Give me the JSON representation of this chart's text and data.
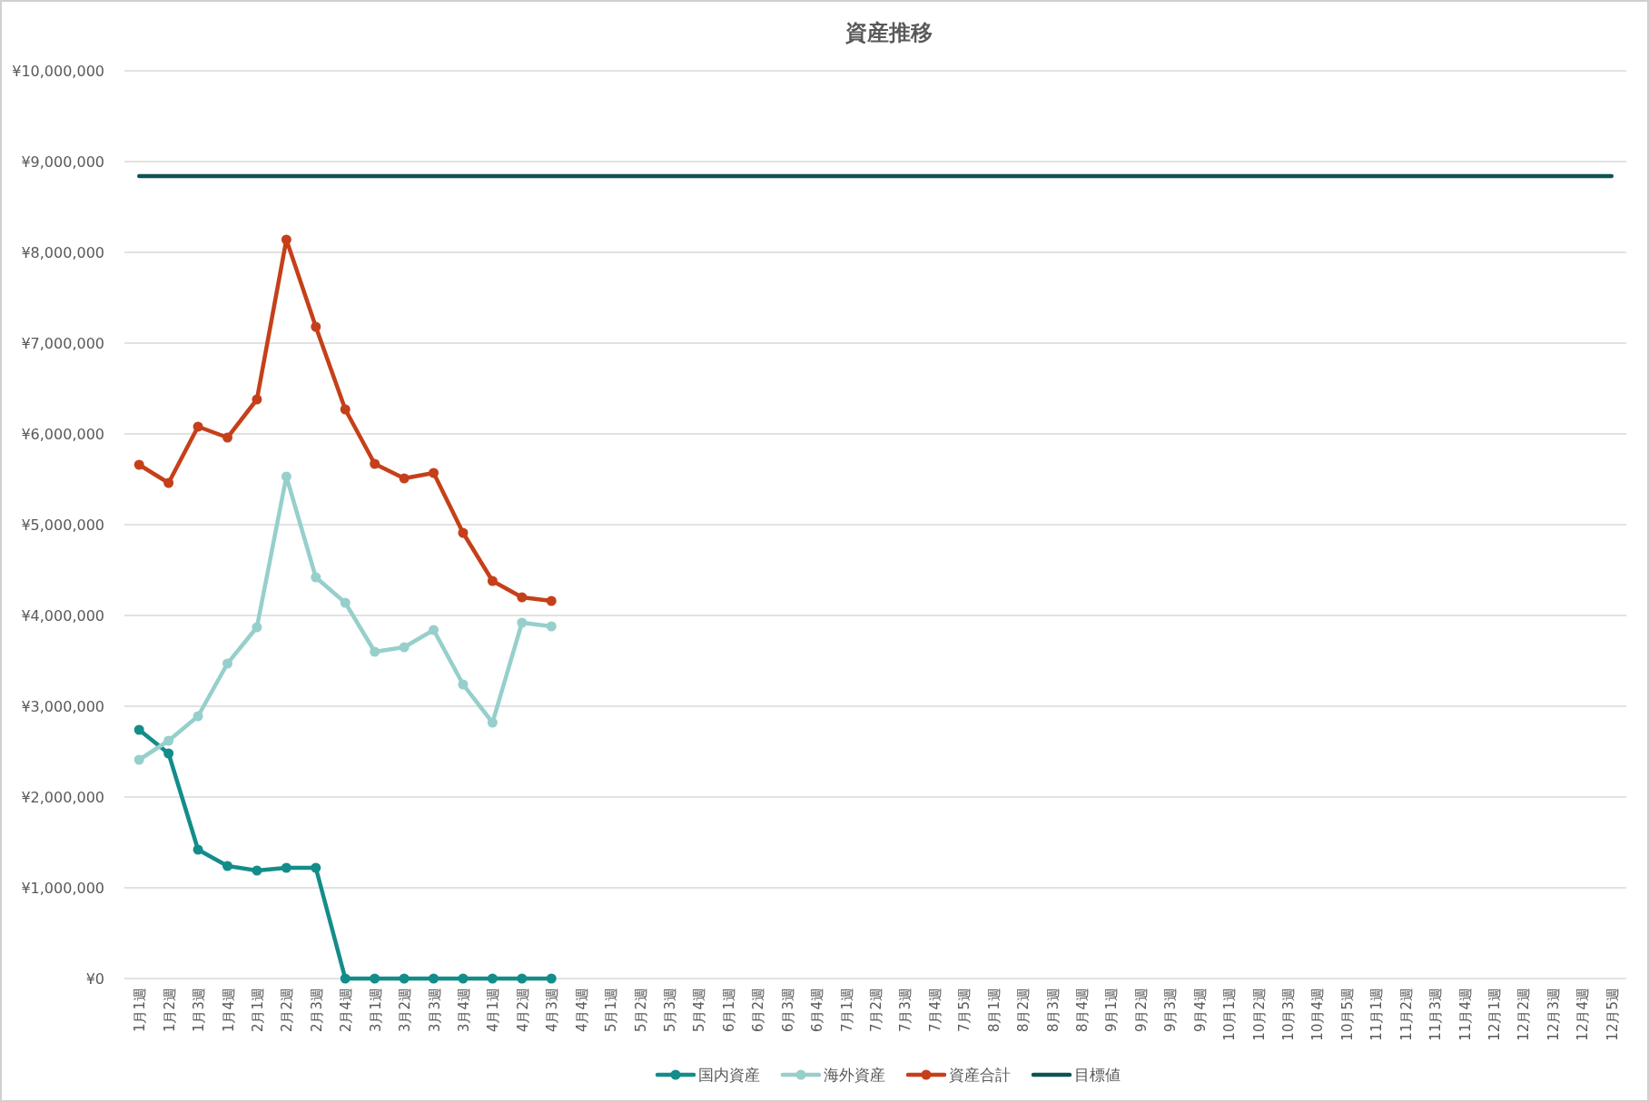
{
  "chart_data": {
    "type": "line",
    "title": "資産推移",
    "categories": [
      "1月1週",
      "1月2週",
      "1月3週",
      "1月4週",
      "2月1週",
      "2月2週",
      "2月3週",
      "2月4週",
      "3月1週",
      "3月2週",
      "3月3週",
      "3月4週",
      "4月1週",
      "4月2週",
      "4月3週",
      "4月4週",
      "5月1週",
      "5月2週",
      "5月3週",
      "5月4週",
      "6月1週",
      "6月2週",
      "6月3週",
      "6月4週",
      "7月1週",
      "7月2週",
      "7月3週",
      "7月4週",
      "7月5週",
      "8月1週",
      "8月2週",
      "8月3週",
      "8月4週",
      "9月1週",
      "9月2週",
      "9月3週",
      "9月4週",
      "10月1週",
      "10月2週",
      "10月3週",
      "10月4週",
      "10月5週",
      "11月1週",
      "11月2週",
      "11月3週",
      "11月4週",
      "12月1週",
      "12月2週",
      "12月3週",
      "12月4週",
      "12月5週"
    ],
    "series": [
      {
        "name": "国内資産",
        "color": "#138d8a",
        "marker": "circle",
        "values": [
          2740000,
          2480000,
          1420000,
          1240000,
          1190000,
          1220000,
          1220000,
          0,
          0,
          0,
          0,
          0,
          0,
          0,
          0,
          null,
          null,
          null,
          null,
          null,
          null,
          null,
          null,
          null,
          null,
          null,
          null,
          null,
          null,
          null,
          null,
          null,
          null,
          null,
          null,
          null,
          null,
          null,
          null,
          null,
          null,
          null,
          null,
          null,
          null,
          null,
          null,
          null,
          null,
          null,
          null
        ]
      },
      {
        "name": "海外資産",
        "color": "#96cfcc",
        "marker": "circle",
        "values": [
          2410000,
          2620000,
          2890000,
          3470000,
          3870000,
          5530000,
          4420000,
          4140000,
          3600000,
          3650000,
          3840000,
          3240000,
          2820000,
          3920000,
          3880000,
          null,
          null,
          null,
          null,
          null,
          null,
          null,
          null,
          null,
          null,
          null,
          null,
          null,
          null,
          null,
          null,
          null,
          null,
          null,
          null,
          null,
          null,
          null,
          null,
          null,
          null,
          null,
          null,
          null,
          null,
          null,
          null,
          null,
          null,
          null,
          null
        ]
      },
      {
        "name": "資産合計",
        "color": "#c5401a",
        "marker": "circle",
        "values": [
          5660000,
          5460000,
          6080000,
          5960000,
          6380000,
          8140000,
          7180000,
          6270000,
          5670000,
          5510000,
          5570000,
          4910000,
          4380000,
          4200000,
          4160000,
          null,
          null,
          null,
          null,
          null,
          null,
          null,
          null,
          null,
          null,
          null,
          null,
          null,
          null,
          null,
          null,
          null,
          null,
          null,
          null,
          null,
          null,
          null,
          null,
          null,
          null,
          null,
          null,
          null,
          null,
          null,
          null,
          null,
          null,
          null,
          null
        ]
      },
      {
        "name": "目標値",
        "color": "#0e5454",
        "marker": "none",
        "values": [
          8840000,
          8840000,
          8840000,
          8840000,
          8840000,
          8840000,
          8840000,
          8840000,
          8840000,
          8840000,
          8840000,
          8840000,
          8840000,
          8840000,
          8840000,
          8840000,
          8840000,
          8840000,
          8840000,
          8840000,
          8840000,
          8840000,
          8840000,
          8840000,
          8840000,
          8840000,
          8840000,
          8840000,
          8840000,
          8840000,
          8840000,
          8840000,
          8840000,
          8840000,
          8840000,
          8840000,
          8840000,
          8840000,
          8840000,
          8840000,
          8840000,
          8840000,
          8840000,
          8840000,
          8840000,
          8840000,
          8840000,
          8840000,
          8840000,
          8840000,
          8840000
        ]
      }
    ],
    "ylim": [
      0,
      10000000
    ],
    "yticks": [
      {
        "value": 0,
        "label": "¥0"
      },
      {
        "value": 1000000,
        "label": "¥1,000,000"
      },
      {
        "value": 2000000,
        "label": "¥2,000,000"
      },
      {
        "value": 3000000,
        "label": "¥3,000,000"
      },
      {
        "value": 4000000,
        "label": "¥4,000,000"
      },
      {
        "value": 5000000,
        "label": "¥5,000,000"
      },
      {
        "value": 6000000,
        "label": "¥6,000,000"
      },
      {
        "value": 7000000,
        "label": "¥7,000,000"
      },
      {
        "value": 8000000,
        "label": "¥8,000,000"
      },
      {
        "value": 9000000,
        "label": "¥9,000,000"
      },
      {
        "value": 10000000,
        "label": "¥10,000,000"
      }
    ],
    "grid": "y",
    "legend": "bottom",
    "line_style": "solid"
  }
}
